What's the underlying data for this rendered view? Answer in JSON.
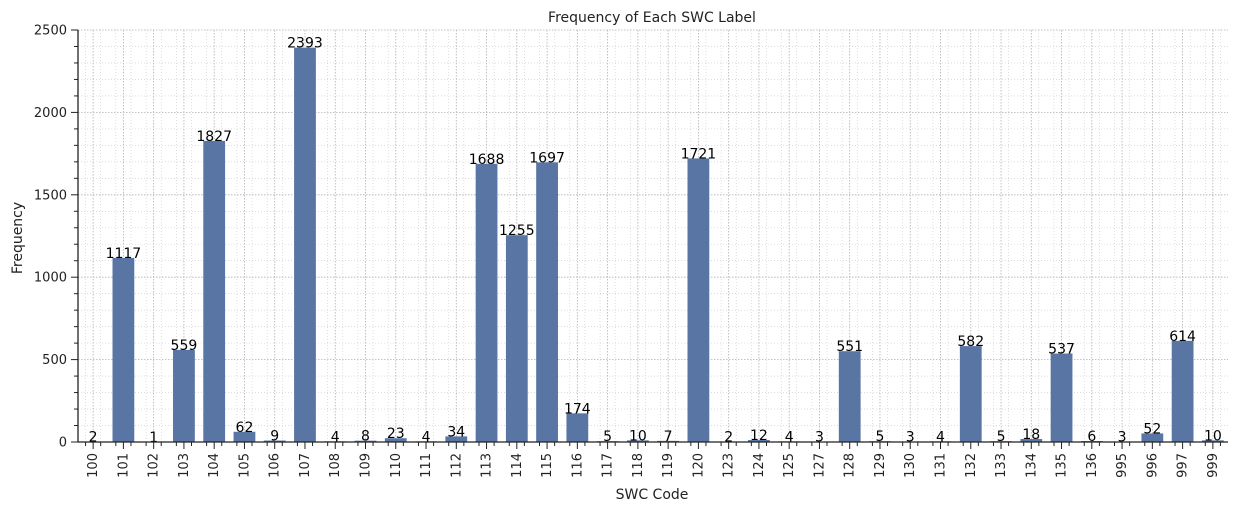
{
  "chart_data": {
    "type": "bar",
    "title": "Frequency of Each SWC Label",
    "xlabel": "SWC Code",
    "ylabel": "Frequency",
    "ylim": [
      0,
      2500
    ],
    "yticks": [
      0,
      500,
      1000,
      1500,
      2000,
      2500
    ],
    "grid": true,
    "categories": [
      "100",
      "101",
      "102",
      "103",
      "104",
      "105",
      "106",
      "107",
      "108",
      "109",
      "110",
      "111",
      "112",
      "113",
      "114",
      "115",
      "116",
      "117",
      "118",
      "119",
      "120",
      "123",
      "124",
      "125",
      "127",
      "128",
      "129",
      "130",
      "131",
      "132",
      "133",
      "134",
      "135",
      "136",
      "995",
      "996",
      "997",
      "999"
    ],
    "values": [
      2,
      1117,
      1,
      559,
      1827,
      62,
      9,
      2393,
      4,
      8,
      23,
      4,
      34,
      1688,
      1255,
      1697,
      174,
      5,
      10,
      7,
      1721,
      2,
      12,
      4,
      3,
      551,
      5,
      3,
      4,
      582,
      5,
      18,
      537,
      6,
      3,
      52,
      614,
      10
    ],
    "bar_color": "#5975a4",
    "label_color": "#000000"
  }
}
